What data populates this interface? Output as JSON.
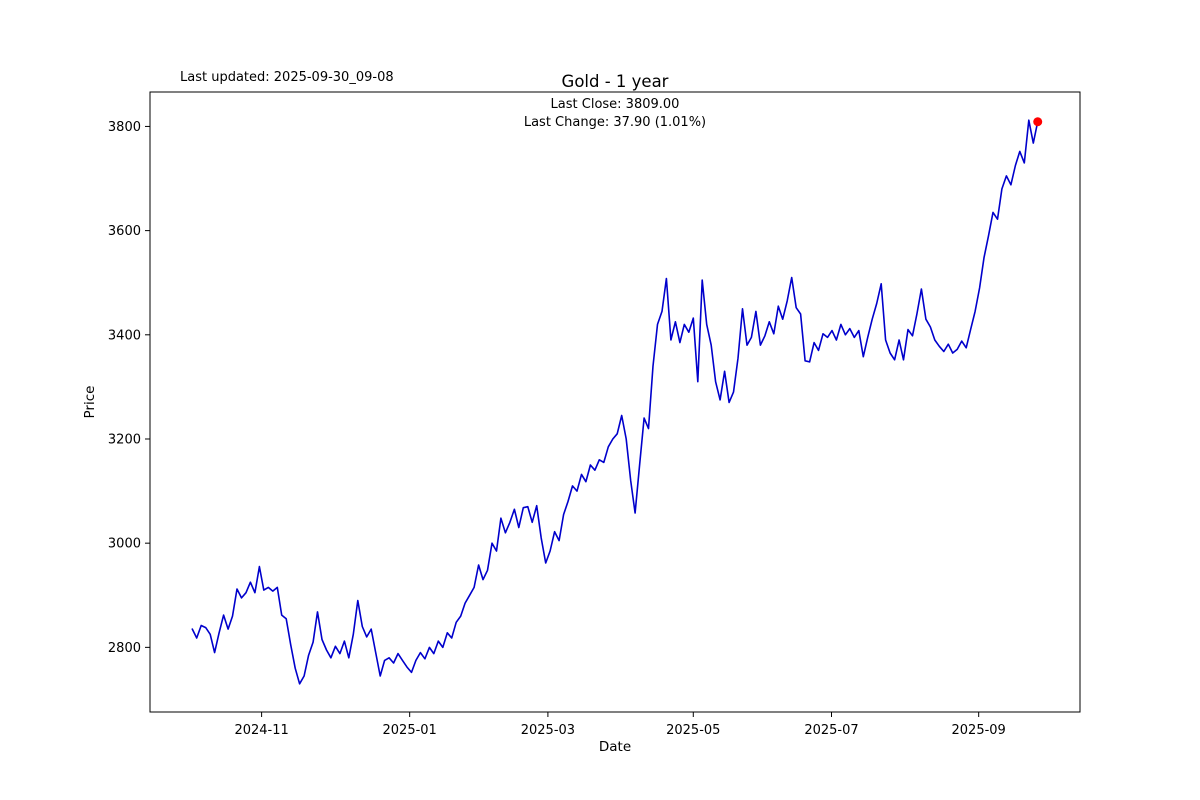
{
  "figure": {
    "last_updated": "Last updated: 2025-09-30_09-08",
    "title": "Gold - 1 year",
    "annotation_line1": "Last Close: 3809.00",
    "annotation_line2": "Last Change: 37.90 (1.01%)"
  },
  "chart_data": {
    "type": "line",
    "title": "Gold - 1 year",
    "xlabel": "Date",
    "ylabel": "Price",
    "legend": "none",
    "grid": false,
    "line_color": "#0000cc",
    "marker_color": "#ff0000",
    "last_close": 3809.0,
    "last_change_text": "37.90 (1.01%)",
    "x_unit": "trading-session index over 1 year ending 2025-09-30",
    "y_ticks": [
      2800,
      3000,
      3200,
      3400,
      3600,
      3800
    ],
    "x_ticks": [
      {
        "label": "2024-11",
        "pos": 15.5
      },
      {
        "label": "2025-01",
        "pos": 48.6
      },
      {
        "label": "2025-03",
        "pos": 79.5
      },
      {
        "label": "2025-05",
        "pos": 112.0
      },
      {
        "label": "2025-07",
        "pos": 142.9
      },
      {
        "label": "2025-09",
        "pos": 175.8
      }
    ],
    "values": [
      2835,
      2818,
      2842,
      2838,
      2825,
      2790,
      2828,
      2862,
      2835,
      2860,
      2912,
      2895,
      2905,
      2925,
      2905,
      2955,
      2910,
      2915,
      2908,
      2915,
      2862,
      2855,
      2805,
      2760,
      2730,
      2745,
      2785,
      2810,
      2868,
      2815,
      2795,
      2780,
      2802,
      2788,
      2812,
      2780,
      2825,
      2890,
      2840,
      2820,
      2835,
      2790,
      2745,
      2775,
      2780,
      2770,
      2788,
      2775,
      2762,
      2752,
      2775,
      2790,
      2778,
      2800,
      2788,
      2812,
      2800,
      2828,
      2818,
      2848,
      2860,
      2885,
      2900,
      2915,
      2958,
      2930,
      2948,
      3000,
      2985,
      3048,
      3020,
      3040,
      3065,
      3030,
      3068,
      3070,
      3040,
      3072,
      3010,
      2962,
      2985,
      3022,
      3005,
      3055,
      3080,
      3110,
      3100,
      3132,
      3118,
      3150,
      3140,
      3160,
      3155,
      3185,
      3200,
      3210,
      3245,
      3200,
      3120,
      3058,
      3150,
      3240,
      3220,
      3340,
      3420,
      3445,
      3508,
      3390,
      3425,
      3385,
      3420,
      3405,
      3432,
      3310,
      3505,
      3420,
      3380,
      3310,
      3275,
      3330,
      3270,
      3290,
      3355,
      3450,
      3380,
      3395,
      3445,
      3380,
      3398,
      3425,
      3402,
      3455,
      3430,
      3465,
      3510,
      3452,
      3440,
      3350,
      3348,
      3385,
      3370,
      3402,
      3395,
      3408,
      3390,
      3420,
      3400,
      3412,
      3395,
      3408,
      3358,
      3395,
      3430,
      3460,
      3498,
      3390,
      3365,
      3352,
      3390,
      3352,
      3410,
      3398,
      3440,
      3488,
      3430,
      3415,
      3390,
      3378,
      3368,
      3382,
      3365,
      3372,
      3388,
      3375,
      3410,
      3445,
      3490,
      3548,
      3590,
      3635,
      3622,
      3680,
      3705,
      3688,
      3725,
      3752,
      3730,
      3812,
      3768,
      3809
    ]
  }
}
